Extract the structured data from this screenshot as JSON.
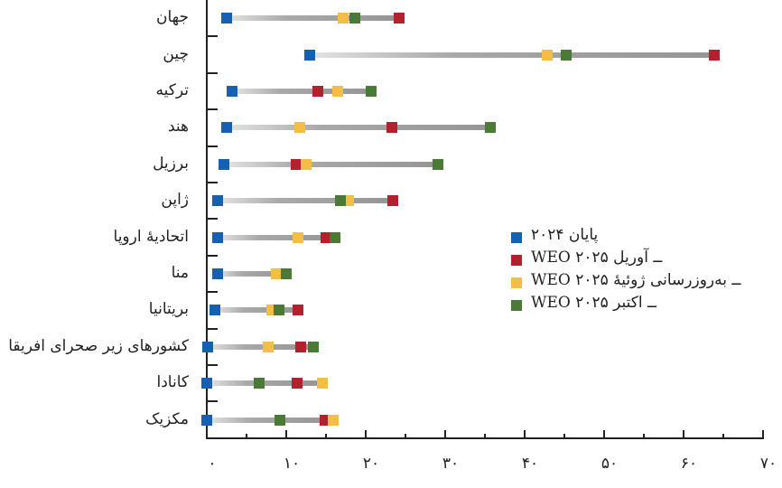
{
  "chart_data": {
    "type": "dumbbell",
    "title": "",
    "xlabel": "",
    "ylabel": "",
    "xlim": [
      0,
      70
    ],
    "x_ticks": [
      0,
      10,
      20,
      30,
      40,
      50,
      60,
      70
    ],
    "x_tick_labels": [
      "۰",
      "۱۰",
      "۲۰",
      "۳۰",
      "۴۰",
      "۵۰",
      "۶۰",
      "۷۰"
    ],
    "grid": false,
    "legend_position": "center-right",
    "categories": [
      "جهان",
      "چین",
      "ترکیه",
      "هند",
      "برزیل",
      "ژاپن",
      "اتحادیهٔ اروپا",
      "منا",
      "بریتانیا",
      "کشورهای زیر صحرای افریقا",
      "کانادا",
      "مکزیک"
    ],
    "series": [
      {
        "name": "پایان ۲۰۲۴",
        "color": "#1560b0",
        "values": [
          2.5,
          13.0,
          3.2,
          2.5,
          2.2,
          1.4,
          1.4,
          1.4,
          1.0,
          0.1,
          0.0,
          0.0
        ]
      },
      {
        "name": "WEO ــ آوریل ۲۰۲۵",
        "color": "#b3202e",
        "values": [
          24.2,
          63.9,
          14.0,
          23.3,
          11.2,
          23.4,
          15.0,
          8.8,
          11.5,
          11.8,
          11.4,
          14.9
        ]
      },
      {
        "name": "WEO ــ به‌روزرسانی ژوئیهٔ ۲۰۲۵",
        "color": "#f4bd45",
        "values": [
          17.2,
          42.8,
          16.5,
          11.7,
          12.5,
          17.8,
          11.5,
          8.8,
          8.2,
          7.7,
          14.5,
          15.9
        ]
      },
      {
        "name": "WEO ــ اکتبر ۲۰۲۵",
        "color": "#4a7a35",
        "values": [
          18.6,
          45.2,
          20.7,
          35.7,
          29.1,
          16.8,
          16.1,
          10.0,
          9.1,
          13.4,
          6.6,
          9.2
        ]
      }
    ],
    "draw_order": [
      1,
      2,
      3,
      0
    ]
  },
  "legend": {
    "items": [
      {
        "label": "پایان ۲۰۲۴",
        "color": "#1560b0"
      },
      {
        "label": "WEO ــ آوریل ۲۰۲۵",
        "color": "#b3202e"
      },
      {
        "label": "WEO ــ به‌روزرسانی ژوئیهٔ ۲۰۲۵",
        "color": "#f4bd45"
      },
      {
        "label": "WEO ــ اکتبر ۲۰۲۵",
        "color": "#4a7a35"
      }
    ]
  }
}
